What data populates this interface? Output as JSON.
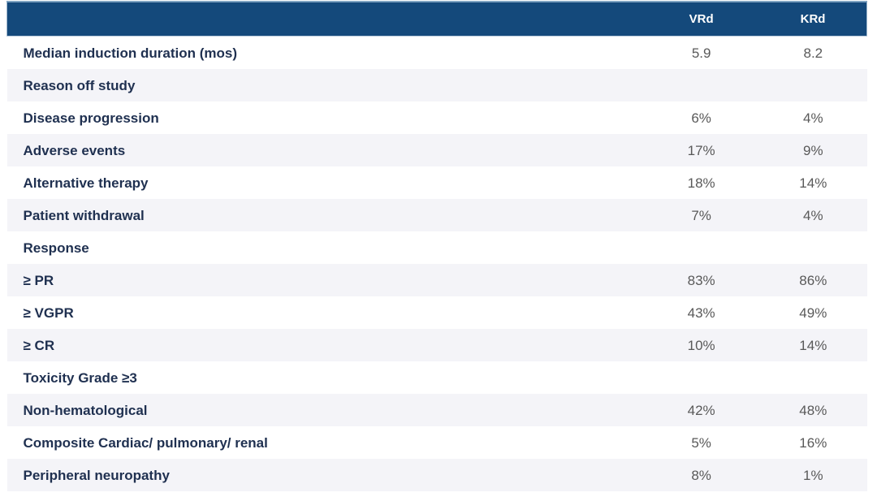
{
  "chart_data": {
    "type": "table",
    "title": "",
    "columns": [
      "",
      "VRd",
      "KRd"
    ],
    "legend_entries": [
      "VRd",
      "KRd"
    ],
    "median_induction_duration_mos": {
      "VRd": 5.9,
      "KRd": 8.2
    },
    "rows": [
      {
        "label": "Median induction duration (mos)",
        "VRd": "5.9",
        "KRd": "8.2",
        "section": false
      },
      {
        "label": "Reason off study",
        "VRd": "",
        "KRd": "",
        "section": true
      },
      {
        "label": "Disease progression",
        "VRd": "6%",
        "KRd": "4%",
        "section": false
      },
      {
        "label": "Adverse events",
        "VRd": "17%",
        "KRd": "9%",
        "section": false
      },
      {
        "label": "Alternative therapy",
        "VRd": "18%",
        "KRd": "14%",
        "section": false
      },
      {
        "label": "Patient withdrawal",
        "VRd": "7%",
        "KRd": "4%",
        "section": false
      },
      {
        "label": "Response",
        "VRd": "",
        "KRd": "",
        "section": true
      },
      {
        "label": "≥ PR",
        "VRd": "83%",
        "KRd": "86%",
        "section": false
      },
      {
        "label": "≥ VGPR",
        "VRd": "43%",
        "KRd": "49%",
        "section": false
      },
      {
        "label": "≥ CR",
        "VRd": "10%",
        "KRd": "14%",
        "section": false
      },
      {
        "label": "Toxicity Grade ≥3",
        "VRd": "",
        "KRd": "",
        "section": true
      },
      {
        "label": "Non-hematological",
        "VRd": "42%",
        "KRd": "48%",
        "section": false
      },
      {
        "label": "Composite Cardiac/ pulmonary/ renal",
        "VRd": "5%",
        "KRd": "16%",
        "section": false
      },
      {
        "label": "Peripheral neuropathy",
        "VRd": "8%",
        "KRd": "1%",
        "section": false
      }
    ]
  },
  "colors": {
    "header_bg": "#14497b",
    "header_text": "#ffffff",
    "row_alt_bg": "#f4f4f8",
    "row_bg": "#ffffff",
    "label_text": "#1f3050",
    "value_text": "#595959"
  }
}
